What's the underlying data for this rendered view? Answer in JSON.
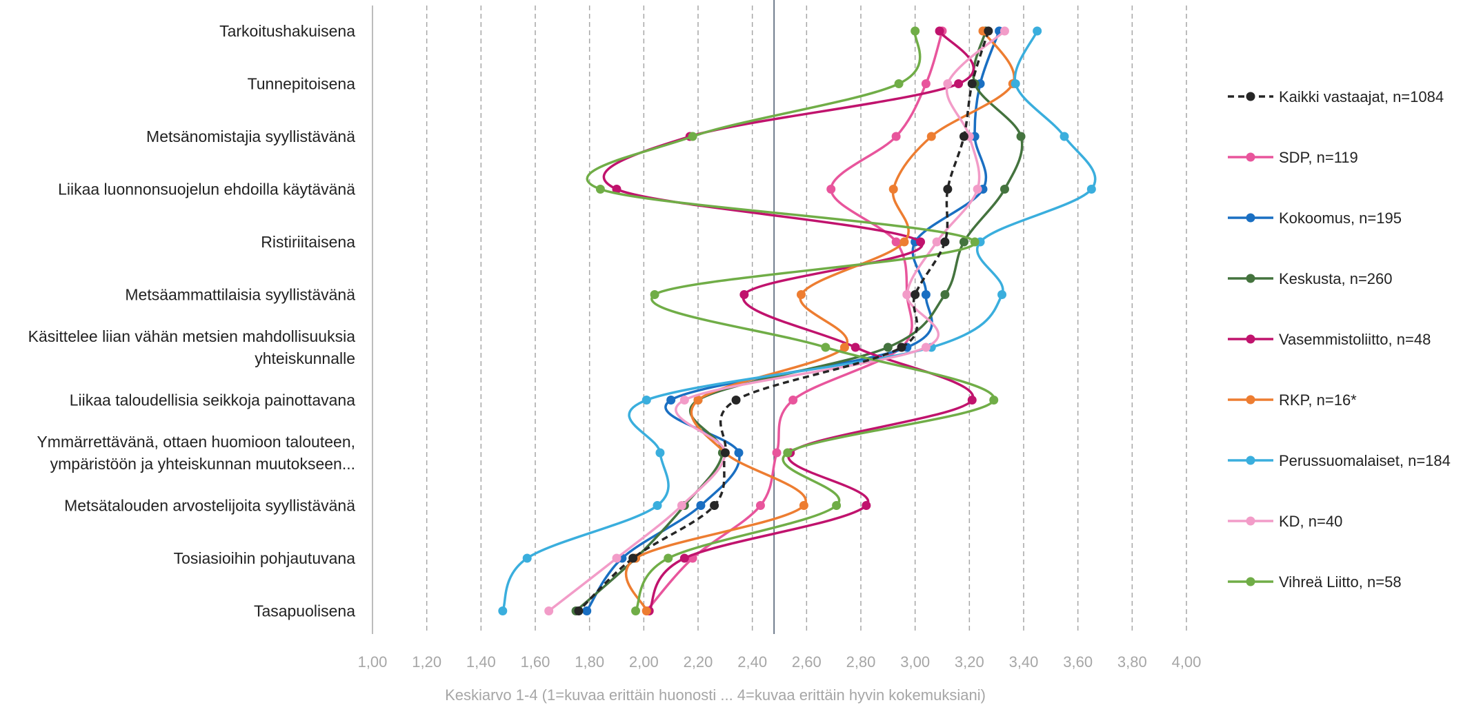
{
  "chart_data": {
    "type": "line",
    "orientation": "horizontal-categories",
    "xlabel": "Keskiarvo 1-4 (1=kuvaa erittäin huonosti ... 4=kuvaa erittäin hyvin kokemuksiani)",
    "xlim": [
      1.0,
      4.0
    ],
    "ticks": [
      "1,00",
      "1,20",
      "1,40",
      "1,60",
      "1,80",
      "2,00",
      "2,20",
      "2,40",
      "2,60",
      "2,80",
      "3,00",
      "3,20",
      "3,40",
      "3,60",
      "3,80",
      "4,00"
    ],
    "tick_values": [
      1.0,
      1.2,
      1.4,
      1.6,
      1.8,
      2.0,
      2.2,
      2.4,
      2.6,
      2.8,
      3.0,
      3.2,
      3.4,
      3.6,
      3.8,
      4.0
    ],
    "grid": "vertical dashed",
    "reference_line": 2.48,
    "legend_position": "right",
    "categories": [
      [
        "Tarkoitushakuisena"
      ],
      [
        "Tunnepitoisena"
      ],
      [
        "Metsänomistajia syyllistävänä"
      ],
      [
        "Liikaa luonnonsuojelun ehdoilla käytävänä"
      ],
      [
        "Ristiriitaisena"
      ],
      [
        "Metsäammattilaisia syyllistävänä"
      ],
      [
        "Käsittelee liian vähän metsien mahdollisuuksia",
        "yhteiskunnalle"
      ],
      [
        "Liikaa taloudellisia seikkoja painottavana"
      ],
      [
        "Ymmärrettävänä, ottaen huomioon talouteen,",
        "ympäristöön ja yhteiskunnan muutokseen..."
      ],
      [
        "Metsätalouden arvostelijoita syyllistävänä"
      ],
      [
        "Tosiasioihin pohjautuvana"
      ],
      [
        "Tasapuolisena"
      ]
    ],
    "series": [
      {
        "name": "Kaikki vastaajat, n=1084",
        "color": "#262626",
        "dashed": true,
        "values": [
          3.27,
          3.21,
          3.18,
          3.12,
          3.11,
          3.0,
          2.95,
          2.34,
          2.3,
          2.26,
          1.96,
          1.76
        ]
      },
      {
        "name": "SDP, n=119",
        "color": "#e8559c",
        "dashed": false,
        "values": [
          3.1,
          3.04,
          2.93,
          2.69,
          2.93,
          2.97,
          2.95,
          2.55,
          2.49,
          2.43,
          2.18,
          2.01
        ]
      },
      {
        "name": "Kokoomus, n=195",
        "color": "#1a6fc2",
        "dashed": false,
        "values": [
          3.31,
          3.24,
          3.22,
          3.25,
          3.0,
          3.04,
          2.97,
          2.1,
          2.35,
          2.21,
          1.92,
          1.79
        ]
      },
      {
        "name": "Keskusta, n=260",
        "color": "#44733e",
        "dashed": false,
        "values": [
          3.26,
          3.22,
          3.39,
          3.33,
          3.18,
          3.11,
          2.9,
          2.2,
          2.29,
          2.15,
          1.97,
          1.75
        ]
      },
      {
        "name": "Vasemmistoliitto, n=48",
        "color": "#c0136d",
        "dashed": false,
        "values": [
          3.09,
          3.16,
          2.17,
          1.9,
          3.02,
          2.37,
          2.78,
          3.21,
          2.54,
          2.82,
          2.15,
          2.02
        ]
      },
      {
        "name": "RKP, n=16*",
        "color": "#ed7d31",
        "dashed": false,
        "values": [
          3.25,
          3.36,
          3.06,
          2.92,
          2.96,
          2.58,
          2.74,
          2.2,
          2.3,
          2.59,
          1.97,
          2.01
        ]
      },
      {
        "name": "Perussuomalaiset, n=184",
        "color": "#3aaedd",
        "dashed": false,
        "values": [
          3.45,
          3.37,
          3.55,
          3.65,
          3.24,
          3.32,
          3.06,
          2.01,
          2.06,
          2.05,
          1.57,
          1.48
        ]
      },
      {
        "name": "KD, n=40",
        "color": "#f29cc8",
        "dashed": false,
        "values": [
          3.33,
          3.12,
          3.2,
          3.23,
          3.08,
          2.97,
          3.04,
          2.15,
          2.3,
          2.14,
          1.9,
          1.65
        ]
      },
      {
        "name": "Vihreä Liitto, n=58",
        "color": "#70ad47",
        "dashed": false,
        "values": [
          3.0,
          2.94,
          2.18,
          1.84,
          3.22,
          2.04,
          2.67,
          3.29,
          2.53,
          2.71,
          2.09,
          1.97
        ]
      }
    ]
  }
}
